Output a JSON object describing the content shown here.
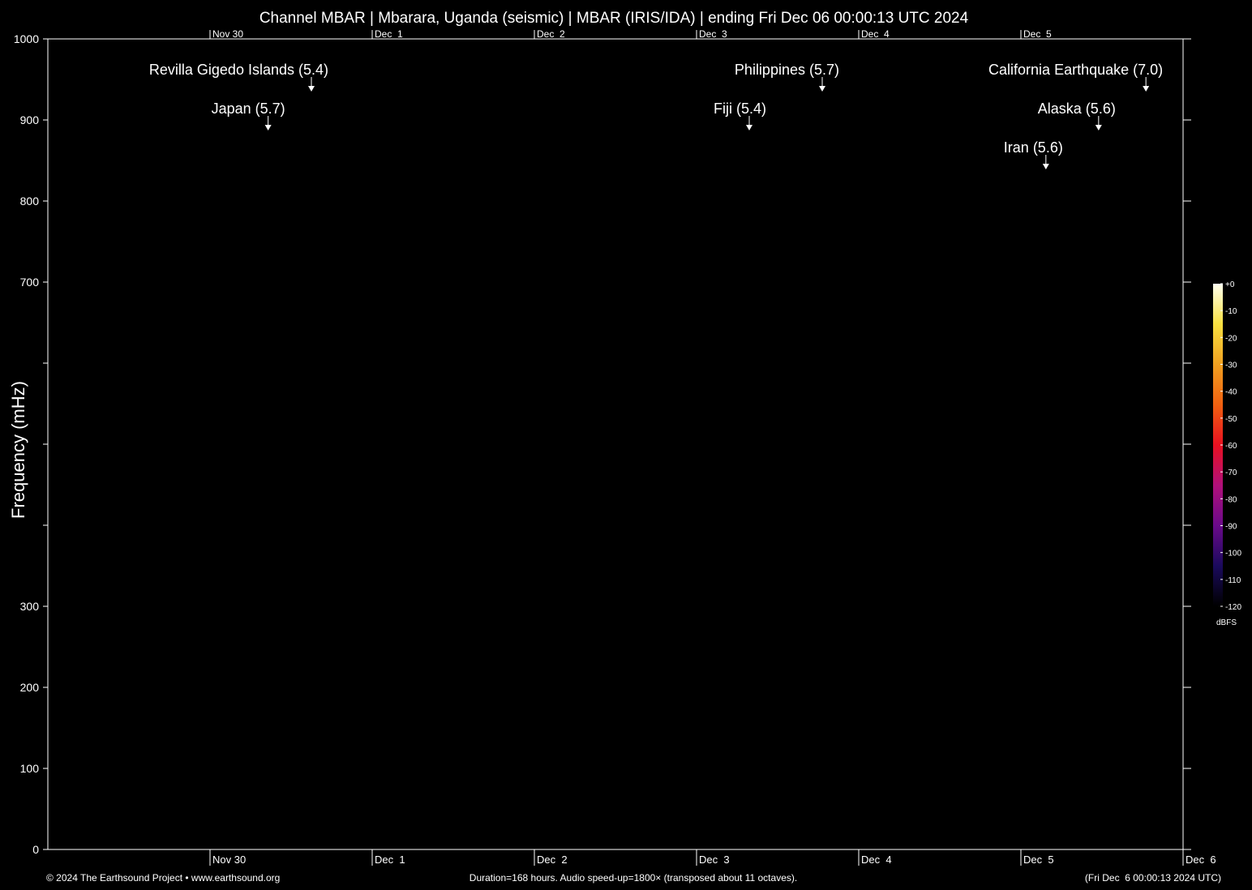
{
  "chart_data": {
    "type": "spectrogram",
    "title": "Channel MBAR | Mbarara, Uganda (seismic) | MBAR (IRIS/IDA) | ending Fri Dec 06 00:00:13 UTC 2024",
    "y_label": "Frequency (mHz)",
    "xlim": [
      0,
      168
    ],
    "xticks": [
      {
        "value": 24,
        "label": "Nov 30"
      },
      {
        "value": 48,
        "label": "Dec  1"
      },
      {
        "value": 72,
        "label": "Dec  2"
      },
      {
        "value": 96,
        "label": "Dec  3"
      },
      {
        "value": 120,
        "label": "Dec  4"
      },
      {
        "value": 144,
        "label": "Dec  5"
      },
      {
        "value": 168,
        "label": "Dec  6"
      }
    ],
    "ylim": [
      0,
      1000
    ],
    "yticks": [
      0,
      100,
      200,
      300,
      {
        "value": 400,
        "label": null
      },
      {
        "value": 500,
        "label": null
      },
      {
        "value": 600,
        "label": null
      },
      700,
      800,
      900,
      1000
    ],
    "annotations": [
      {
        "text": "Revilla Gigedo Islands (5.4)",
        "x": 39,
        "y": 935
      },
      {
        "text": "Japan (5.7)",
        "x": 32.6,
        "y": 887
      },
      {
        "text": "Philippines (5.7)",
        "x": 114.6,
        "y": 935
      },
      {
        "text": "Fiji (5.4)",
        "x": 103.8,
        "y": 887
      },
      {
        "text": "California Earthquake (7.0)",
        "x": 162.5,
        "y": 935
      },
      {
        "text": "Alaska (5.6)",
        "x": 155.5,
        "y": 887
      },
      {
        "text": "Iran (5.6)",
        "x": 147.7,
        "y": 839
      }
    ],
    "colorbar": {
      "label": "dBFS",
      "lim": [
        -120,
        0
      ],
      "ticks": [
        {
          "value": 0,
          "label": "+0"
        },
        -10,
        -20,
        -30,
        -40,
        -50,
        -60,
        -70,
        -80,
        -90,
        -100,
        -110,
        -120
      ],
      "colormap": [
        "#000000",
        "#1a0a5c",
        "#6a0a8a",
        "#b0107a",
        "#e81020",
        "#f06010",
        "#f0a020",
        "#f8e040",
        "#fffff0"
      ]
    },
    "footer": {
      "left": "© 2024 The Earthsound Project • www.earthsound.org",
      "center": "Duration=168 hours. Audio speed-up=1800× (transposed about 11 octaves).",
      "right": "(Fri Dec  6 00:00:13 2024 UTC)"
    }
  }
}
